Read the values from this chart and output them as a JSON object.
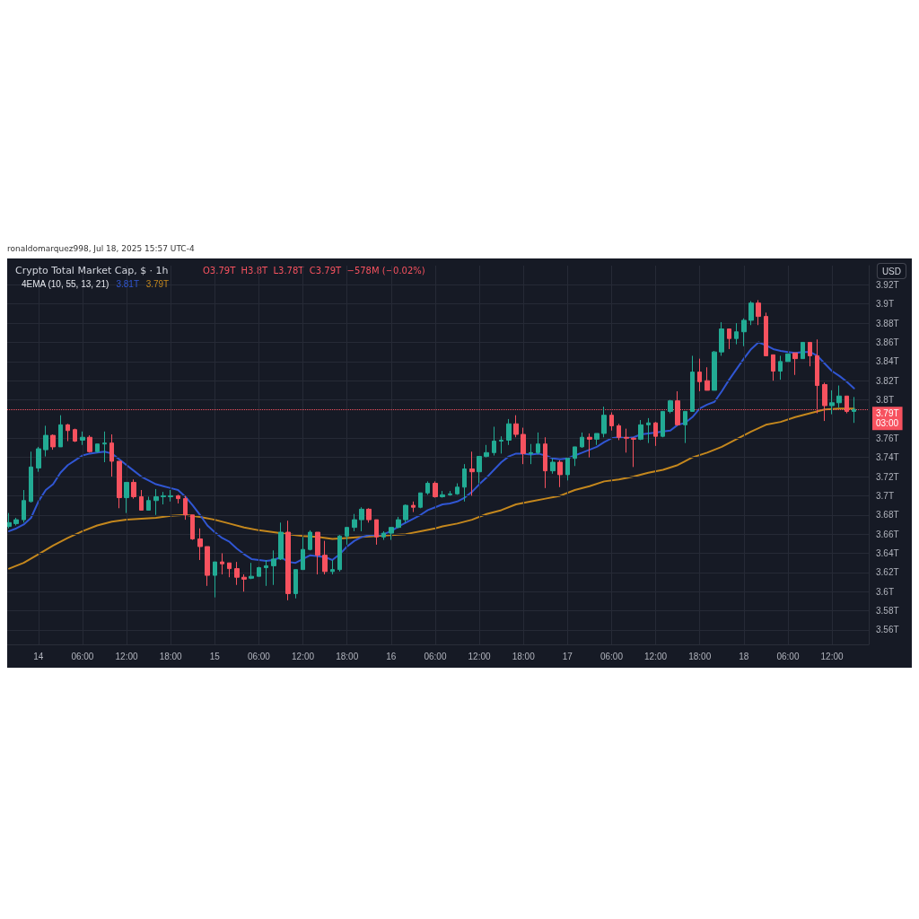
{
  "chart_data": {
    "type": "candlestick",
    "title": "Crypto Total Market Cap, $ · 1h",
    "ylabel": "USD",
    "annotations": [
      "ronaldomarquez998, Jul 18, 2025 15:57 UTC-4",
      "O3.79T  H3.8T  L3.78T  C3.79T  −578M (−0.02%)",
      "4EMA (10, 55, 13, 21)",
      "3.81T",
      "3.79T",
      "03:00"
    ],
    "x": [
      "2025-07-13T20:00",
      "2025-07-13T21:00",
      "2025-07-13T22:00",
      "2025-07-13T23:00",
      "2025-07-14T00:00",
      "2025-07-14T01:00",
      "2025-07-14T02:00",
      "2025-07-14T03:00",
      "2025-07-14T04:00",
      "2025-07-14T05:00",
      "2025-07-14T06:00",
      "2025-07-14T07:00",
      "2025-07-14T08:00",
      "2025-07-14T09:00",
      "2025-07-14T10:00",
      "2025-07-14T11:00",
      "2025-07-14T12:00",
      "2025-07-14T13:00",
      "2025-07-14T14:00",
      "2025-07-14T15:00",
      "2025-07-14T16:00",
      "2025-07-14T17:00",
      "2025-07-14T18:00",
      "2025-07-14T19:00",
      "2025-07-14T20:00",
      "2025-07-14T21:00",
      "2025-07-14T22:00",
      "2025-07-14T23:00",
      "2025-07-15T00:00",
      "2025-07-15T01:00",
      "2025-07-15T02:00",
      "2025-07-15T03:00",
      "2025-07-15T04:00",
      "2025-07-15T05:00",
      "2025-07-15T06:00",
      "2025-07-15T07:00",
      "2025-07-15T08:00",
      "2025-07-15T09:00",
      "2025-07-15T10:00",
      "2025-07-15T11:00",
      "2025-07-15T12:00",
      "2025-07-15T13:00",
      "2025-07-15T14:00",
      "2025-07-15T15:00",
      "2025-07-15T16:00",
      "2025-07-15T17:00",
      "2025-07-15T18:00",
      "2025-07-15T19:00",
      "2025-07-15T20:00",
      "2025-07-15T21:00",
      "2025-07-15T22:00",
      "2025-07-15T23:00",
      "2025-07-16T00:00",
      "2025-07-16T01:00",
      "2025-07-16T02:00",
      "2025-07-16T03:00",
      "2025-07-16T04:00",
      "2025-07-16T05:00",
      "2025-07-16T06:00",
      "2025-07-16T07:00",
      "2025-07-16T08:00",
      "2025-07-16T09:00",
      "2025-07-16T10:00",
      "2025-07-16T11:00",
      "2025-07-16T12:00",
      "2025-07-16T13:00",
      "2025-07-16T14:00",
      "2025-07-16T15:00",
      "2025-07-16T16:00",
      "2025-07-16T17:00",
      "2025-07-16T18:00",
      "2025-07-16T19:00",
      "2025-07-16T20:00",
      "2025-07-16T21:00",
      "2025-07-16T22:00",
      "2025-07-16T23:00",
      "2025-07-17T00:00",
      "2025-07-17T01:00",
      "2025-07-17T02:00",
      "2025-07-17T03:00",
      "2025-07-17T04:00",
      "2025-07-17T05:00",
      "2025-07-17T06:00",
      "2025-07-17T07:00",
      "2025-07-17T08:00",
      "2025-07-17T09:00",
      "2025-07-17T10:00",
      "2025-07-17T11:00",
      "2025-07-17T12:00",
      "2025-07-17T13:00",
      "2025-07-17T14:00",
      "2025-07-17T15:00",
      "2025-07-17T16:00",
      "2025-07-17T17:00",
      "2025-07-17T18:00",
      "2025-07-17T19:00",
      "2025-07-17T20:00",
      "2025-07-17T21:00",
      "2025-07-17T22:00",
      "2025-07-17T23:00",
      "2025-07-18T00:00",
      "2025-07-18T01:00",
      "2025-07-18T02:00",
      "2025-07-18T03:00",
      "2025-07-18T04:00",
      "2025-07-18T05:00",
      "2025-07-18T06:00",
      "2025-07-18T07:00",
      "2025-07-18T08:00",
      "2025-07-18T09:00",
      "2025-07-18T10:00",
      "2025-07-18T11:00",
      "2025-07-18T12:00",
      "2025-07-18T13:00",
      "2025-07-18T14:00",
      "2025-07-18T15:00"
    ],
    "ohlc": [
      [
        3.668,
        3.682,
        3.666,
        3.672
      ],
      [
        3.671,
        3.677,
        3.669,
        3.675
      ],
      [
        3.675,
        3.706,
        3.672,
        3.695
      ],
      [
        3.694,
        3.746,
        3.693,
        3.73
      ],
      [
        3.729,
        3.751,
        3.725,
        3.749
      ],
      [
        3.748,
        3.773,
        3.741,
        3.763
      ],
      [
        3.763,
        3.764,
        3.748,
        3.751
      ],
      [
        3.751,
        3.784,
        3.751,
        3.774
      ],
      [
        3.774,
        3.775,
        3.757,
        3.768
      ],
      [
        3.769,
        3.77,
        3.756,
        3.757
      ],
      [
        3.758,
        3.767,
        3.753,
        3.761
      ],
      [
        3.761,
        3.763,
        3.745,
        3.746
      ],
      [
        3.746,
        3.754,
        3.745,
        3.754
      ],
      [
        3.754,
        3.767,
        3.735,
        3.755
      ],
      [
        3.755,
        3.764,
        3.72,
        3.736
      ],
      [
        3.736,
        3.736,
        3.687,
        3.698
      ],
      [
        3.698,
        3.714,
        3.682,
        3.714
      ],
      [
        3.714,
        3.717,
        3.697,
        3.699
      ],
      [
        3.699,
        3.706,
        3.685,
        3.685
      ],
      [
        3.685,
        3.699,
        3.685,
        3.695
      ],
      [
        3.695,
        3.707,
        3.68,
        3.699
      ],
      [
        3.699,
        3.704,
        3.691,
        3.7
      ],
      [
        3.699,
        3.706,
        3.694,
        3.7
      ],
      [
        3.7,
        3.701,
        3.692,
        3.697
      ],
      [
        3.697,
        3.7,
        3.675,
        3.68
      ],
      [
        3.68,
        3.68,
        3.654,
        3.655
      ],
      [
        3.655,
        3.666,
        3.633,
        3.647
      ],
      [
        3.647,
        3.647,
        3.606,
        3.617
      ],
      [
        3.617,
        3.631,
        3.594,
        3.631
      ],
      [
        3.631,
        3.64,
        3.618,
        3.629
      ],
      [
        3.63,
        3.63,
        3.615,
        3.624
      ],
      [
        3.624,
        3.631,
        3.607,
        3.615
      ],
      [
        3.615,
        3.618,
        3.6,
        3.613
      ],
      [
        3.614,
        3.63,
        3.613,
        3.616
      ],
      [
        3.616,
        3.626,
        3.616,
        3.625
      ],
      [
        3.625,
        3.633,
        3.606,
        3.627
      ],
      [
        3.627,
        3.643,
        3.607,
        3.634
      ],
      [
        3.634,
        3.672,
        3.633,
        3.662
      ],
      [
        3.662,
        3.674,
        3.591,
        3.598
      ],
      [
        3.598,
        3.623,
        3.593,
        3.623
      ],
      [
        3.623,
        3.657,
        3.623,
        3.644
      ],
      [
        3.644,
        3.664,
        3.643,
        3.662
      ],
      [
        3.662,
        3.662,
        3.618,
        3.638
      ],
      [
        3.638,
        3.653,
        3.618,
        3.621
      ],
      [
        3.621,
        3.633,
        3.618,
        3.623
      ],
      [
        3.623,
        3.659,
        3.621,
        3.658
      ],
      [
        3.658,
        3.667,
        3.649,
        3.667
      ],
      [
        3.667,
        3.681,
        3.663,
        3.675
      ],
      [
        3.675,
        3.688,
        3.663,
        3.686
      ],
      [
        3.686,
        3.687,
        3.672,
        3.675
      ],
      [
        3.675,
        3.675,
        3.649,
        3.657
      ],
      [
        3.657,
        3.663,
        3.654,
        3.661
      ],
      [
        3.661,
        3.667,
        3.654,
        3.667
      ],
      [
        3.667,
        3.678,
        3.666,
        3.675
      ],
      [
        3.675,
        3.691,
        3.672,
        3.69
      ],
      [
        3.69,
        3.694,
        3.683,
        3.688
      ],
      [
        3.688,
        3.703,
        3.687,
        3.703
      ],
      [
        3.703,
        3.715,
        3.701,
        3.713
      ],
      [
        3.713,
        3.715,
        3.698,
        3.699
      ],
      [
        3.699,
        3.705,
        3.698,
        3.701
      ],
      [
        3.701,
        3.705,
        3.7,
        3.702
      ],
      [
        3.702,
        3.713,
        3.701,
        3.709
      ],
      [
        3.709,
        3.733,
        3.694,
        3.728
      ],
      [
        3.728,
        3.746,
        3.7,
        3.725
      ],
      [
        3.725,
        3.741,
        3.713,
        3.741
      ],
      [
        3.741,
        3.753,
        3.74,
        3.745
      ],
      [
        3.745,
        3.772,
        3.742,
        3.757
      ],
      [
        3.757,
        3.762,
        3.744,
        3.758
      ],
      [
        3.758,
        3.78,
        3.753,
        3.775
      ],
      [
        3.775,
        3.784,
        3.761,
        3.764
      ],
      [
        3.764,
        3.771,
        3.733,
        3.744
      ],
      [
        3.744,
        3.754,
        3.733,
        3.745
      ],
      [
        3.745,
        3.766,
        3.743,
        3.754
      ],
      [
        3.754,
        3.761,
        3.708,
        3.726
      ],
      [
        3.726,
        3.739,
        3.723,
        3.735
      ],
      [
        3.735,
        3.737,
        3.709,
        3.722
      ],
      [
        3.722,
        3.739,
        3.716,
        3.739
      ],
      [
        3.739,
        3.751,
        3.731,
        3.751
      ],
      [
        3.751,
        3.766,
        3.75,
        3.761
      ],
      [
        3.761,
        3.765,
        3.74,
        3.759
      ],
      [
        3.759,
        3.765,
        3.753,
        3.765
      ],
      [
        3.765,
        3.793,
        3.761,
        3.784
      ],
      [
        3.784,
        3.787,
        3.768,
        3.773
      ],
      [
        3.773,
        3.775,
        3.758,
        3.761
      ],
      [
        3.761,
        3.77,
        3.745,
        3.76
      ],
      [
        3.76,
        3.761,
        3.73,
        3.759
      ],
      [
        3.759,
        3.779,
        3.758,
        3.774
      ],
      [
        3.774,
        3.781,
        3.755,
        3.776
      ],
      [
        3.776,
        3.777,
        3.752,
        3.762
      ],
      [
        3.762,
        3.788,
        3.761,
        3.788
      ],
      [
        3.788,
        3.8,
        3.786,
        3.799
      ],
      [
        3.799,
        3.809,
        3.773,
        3.774
      ],
      [
        3.774,
        3.788,
        3.755,
        3.788
      ],
      [
        3.788,
        3.846,
        3.788,
        3.829
      ],
      [
        3.829,
        3.843,
        3.809,
        3.819
      ],
      [
        3.82,
        3.834,
        3.81,
        3.81
      ],
      [
        3.81,
        3.851,
        3.81,
        3.85
      ],
      [
        3.85,
        3.881,
        3.846,
        3.874
      ],
      [
        3.874,
        3.874,
        3.853,
        3.864
      ],
      [
        3.864,
        3.88,
        3.858,
        3.871
      ],
      [
        3.871,
        3.885,
        3.856,
        3.883
      ],
      [
        3.883,
        3.903,
        3.878,
        3.901
      ],
      [
        3.901,
        3.904,
        3.878,
        3.887
      ],
      [
        3.887,
        3.891,
        3.846,
        3.846
      ],
      [
        3.847,
        3.847,
        3.82,
        3.83
      ],
      [
        3.83,
        3.846,
        3.821,
        3.84
      ],
      [
        3.84,
        3.848,
        3.84,
        3.848
      ],
      [
        3.849,
        3.849,
        3.826,
        3.843
      ],
      [
        3.843,
        3.86,
        3.843,
        3.86
      ],
      [
        3.86,
        3.86,
        3.835,
        3.846
      ],
      [
        3.846,
        3.863,
        3.786,
        3.815
      ],
      [
        3.816,
        3.818,
        3.778,
        3.794
      ],
      [
        3.794,
        3.81,
        3.785,
        3.797
      ],
      [
        3.797,
        3.815,
        3.792,
        3.804
      ],
      [
        3.804,
        3.804,
        3.786,
        3.788
      ],
      [
        3.788,
        3.803,
        3.776,
        3.79
      ]
    ],
    "series": [
      {
        "type": "line",
        "color": "#3056d3",
        "values": [
          3.663,
          3.666,
          3.67,
          3.677,
          3.694,
          3.706,
          3.712,
          3.724,
          3.732,
          3.737,
          3.742,
          3.744,
          3.745,
          3.746,
          3.744,
          3.738,
          3.732,
          3.726,
          3.72,
          3.716,
          3.712,
          3.71,
          3.708,
          3.706,
          3.699,
          3.69,
          3.68,
          3.669,
          3.662,
          3.656,
          3.652,
          3.645,
          3.639,
          3.634,
          3.633,
          3.632,
          3.633,
          3.636,
          3.631,
          3.63,
          3.634,
          3.638,
          3.637,
          3.636,
          3.633,
          3.639,
          3.647,
          3.653,
          3.657,
          3.659,
          3.659,
          3.66,
          3.663,
          3.668,
          3.672,
          3.676,
          3.68,
          3.685,
          3.688,
          3.691,
          3.692,
          3.694,
          3.698,
          3.704,
          3.712,
          3.719,
          3.727,
          3.735,
          3.741,
          3.744,
          3.744,
          3.743,
          3.744,
          3.742,
          3.739,
          3.738,
          3.739,
          3.742,
          3.745,
          3.748,
          3.751,
          3.756,
          3.76,
          3.761,
          3.76,
          3.761,
          3.764,
          3.765,
          3.766,
          3.767,
          3.768,
          3.774,
          3.776,
          3.782,
          3.791,
          3.795,
          3.798,
          3.809,
          3.821,
          3.832,
          3.843,
          3.853,
          3.86,
          3.857,
          3.853,
          3.851,
          3.85,
          3.849,
          3.85,
          3.85,
          3.846,
          3.838,
          3.83,
          3.825,
          3.819,
          3.812
        ]
      },
      {
        "type": "line",
        "color": "#c4871d",
        "x": [
          "2025-07-13T20:00",
          "2025-07-13T22:00",
          "2025-07-14T00:00",
          "2025-07-14T02:00",
          "2025-07-14T04:00",
          "2025-07-14T06:00",
          "2025-07-14T08:00",
          "2025-07-14T10:00",
          "2025-07-14T12:00",
          "2025-07-14T14:00",
          "2025-07-14T16:00",
          "2025-07-14T18:00",
          "2025-07-14T20:00",
          "2025-07-14T22:00",
          "2025-07-15T00:00",
          "2025-07-15T02:00",
          "2025-07-15T04:00",
          "2025-07-15T06:00",
          "2025-07-15T08:00",
          "2025-07-15T10:00",
          "2025-07-15T12:00",
          "2025-07-15T14:00",
          "2025-07-15T16:00",
          "2025-07-15T18:00",
          "2025-07-15T20:00",
          "2025-07-15T22:00",
          "2025-07-16T00:00",
          "2025-07-16T02:00",
          "2025-07-16T04:00",
          "2025-07-16T06:00",
          "2025-07-16T07:00",
          "2025-07-16T09:00",
          "2025-07-16T11:00",
          "2025-07-16T13:00",
          "2025-07-16T15:00",
          "2025-07-16T17:00",
          "2025-07-16T19:00",
          "2025-07-16T21:00",
          "2025-07-16T23:00",
          "2025-07-17T01:00",
          "2025-07-17T03:00",
          "2025-07-17T05:00",
          "2025-07-17T07:00",
          "2025-07-17T09:00",
          "2025-07-17T11:00",
          "2025-07-17T13:00",
          "2025-07-17T15:00",
          "2025-07-17T17:00",
          "2025-07-17T19:00",
          "2025-07-17T21:00",
          "2025-07-17T23:00",
          "2025-07-18T01:00",
          "2025-07-18T03:00",
          "2025-07-18T05:00",
          "2025-07-18T07:00",
          "2025-07-18T09:00",
          "2025-07-18T11:00",
          "2025-07-18T13:00",
          "2025-07-18T15:00"
        ],
        "values": [
          3.624,
          3.63,
          3.639,
          3.648,
          3.656,
          3.663,
          3.669,
          3.673,
          3.675,
          3.676,
          3.677,
          3.679,
          3.68,
          3.678,
          3.675,
          3.671,
          3.667,
          3.664,
          3.662,
          3.66,
          3.658,
          3.657,
          3.655,
          3.656,
          3.657,
          3.658,
          3.659,
          3.66,
          3.663,
          3.666,
          3.668,
          3.671,
          3.675,
          3.681,
          3.685,
          3.691,
          3.694,
          3.697,
          3.7,
          3.706,
          3.71,
          3.715,
          3.717,
          3.72,
          3.724,
          3.727,
          3.732,
          3.74,
          3.745,
          3.751,
          3.759,
          3.767,
          3.774,
          3.777,
          3.782,
          3.786,
          3.79,
          3.791,
          3.791
        ]
      }
    ],
    "marker": "none",
    "line_style": "solid",
    "grid": true,
    "ref_lines": [
      {
        "axis": "y",
        "value": 3.79,
        "label": "3.79T",
        "color": "#f7525f",
        "line_style": "dotted"
      }
    ],
    "xlim": [
      "2025-07-13T19:45",
      "2025-07-18T17:00"
    ],
    "xticks": [
      {
        "value": "2025-07-14T00:00",
        "label": "14"
      },
      {
        "value": "2025-07-14T06:00",
        "label": "06:00"
      },
      {
        "value": "2025-07-14T12:00",
        "label": "12:00"
      },
      {
        "value": "2025-07-14T18:00",
        "label": "18:00"
      },
      {
        "value": "2025-07-15T00:00",
        "label": "15"
      },
      {
        "value": "2025-07-15T06:00",
        "label": "06:00"
      },
      {
        "value": "2025-07-15T12:00",
        "label": "12:00"
      },
      {
        "value": "2025-07-15T18:00",
        "label": "18:00"
      },
      {
        "value": "2025-07-16T00:00",
        "label": "16"
      },
      {
        "value": "2025-07-16T06:00",
        "label": "06:00"
      },
      {
        "value": "2025-07-16T12:00",
        "label": "12:00"
      },
      {
        "value": "2025-07-16T18:00",
        "label": "18:00"
      },
      {
        "value": "2025-07-17T00:00",
        "label": "17"
      },
      {
        "value": "2025-07-17T06:00",
        "label": "06:00"
      },
      {
        "value": "2025-07-17T12:00",
        "label": "12:00"
      },
      {
        "value": "2025-07-17T18:00",
        "label": "18:00"
      },
      {
        "value": "2025-07-18T00:00",
        "label": "18"
      },
      {
        "value": "2025-07-18T06:00",
        "label": "06:00"
      },
      {
        "value": "2025-07-18T12:00",
        "label": "12:00"
      }
    ],
    "ylim": [
      3.545,
      3.94
    ],
    "yticks": [
      {
        "value": 3.56,
        "label": "3.56T"
      },
      {
        "value": 3.58,
        "label": "3.58T"
      },
      {
        "value": 3.6,
        "label": "3.6T"
      },
      {
        "value": 3.62,
        "label": "3.62T"
      },
      {
        "value": 3.64,
        "label": "3.64T"
      },
      {
        "value": 3.66,
        "label": "3.66T"
      },
      {
        "value": 3.68,
        "label": "3.68T"
      },
      {
        "value": 3.7,
        "label": "3.7T"
      },
      {
        "value": 3.72,
        "label": "3.72T"
      },
      {
        "value": 3.74,
        "label": "3.74T"
      },
      {
        "value": 3.76,
        "label": "3.76T"
      },
      {
        "value": 3.8,
        "label": "3.8T"
      },
      {
        "value": 3.82,
        "label": "3.82T"
      },
      {
        "value": 3.84,
        "label": "3.84T"
      },
      {
        "value": 3.86,
        "label": "3.86T"
      },
      {
        "value": 3.88,
        "label": "3.88T"
      },
      {
        "value": 3.9,
        "label": "3.9T"
      },
      {
        "value": 3.92,
        "label": "3.92T"
      }
    ]
  }
}
